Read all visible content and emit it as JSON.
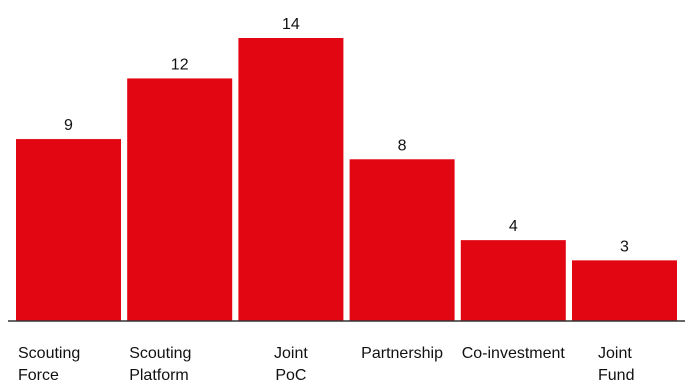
{
  "chart_data": {
    "type": "bar",
    "categories": [
      [
        "Scouting",
        "Force"
      ],
      [
        "Scouting",
        "Platform"
      ],
      [
        "Joint",
        "PoC"
      ],
      [
        "Partnership"
      ],
      [
        "Co-investment"
      ],
      [
        "Joint",
        "Fund"
      ]
    ],
    "values": [
      9,
      12,
      14,
      8,
      4,
      3
    ],
    "title": "",
    "xlabel": "",
    "ylabel": "",
    "ylim": [
      0,
      14
    ],
    "grid": false,
    "legend": "none",
    "colors": {
      "bar": "#E20612",
      "axis": "#333333",
      "text": "#111111"
    }
  }
}
